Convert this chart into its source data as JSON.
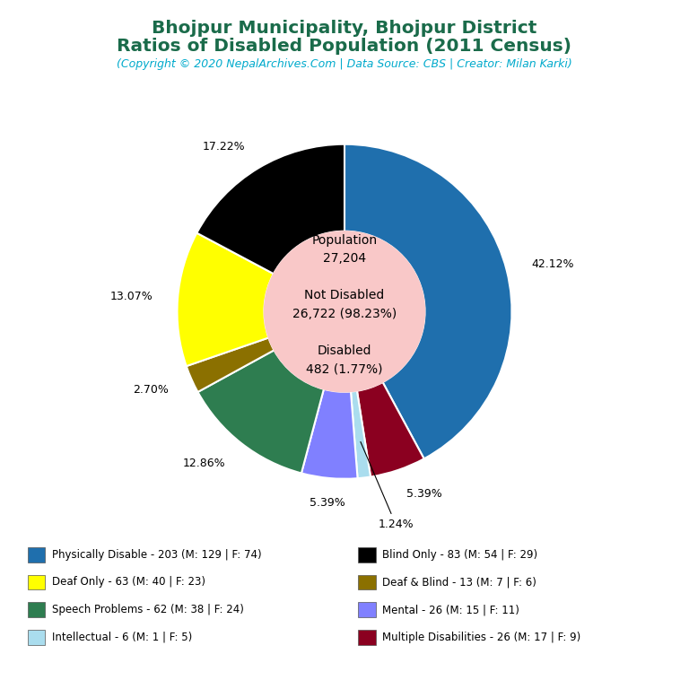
{
  "title_line1": "Bhojpur Municipality, Bhojpur District",
  "title_line2": "Ratios of Disabled Population (2011 Census)",
  "subtitle": "(Copyright © 2020 NepalArchives.Com | Data Source: CBS | Creator: Milan Karki)",
  "title_color": "#1a6b4a",
  "subtitle_color": "#00aacc",
  "population": 27204,
  "not_disabled": 26722,
  "not_disabled_pct": 98.23,
  "disabled": 482,
  "disabled_pct": 1.77,
  "slices": [
    {
      "label": "Physically Disable - 203 (M: 129 | F: 74)",
      "value": 203,
      "pct": "42.12%",
      "color": "#1f6fad"
    },
    {
      "label": "Multiple Disabilities - 26 (M: 17 | F: 9)",
      "value": 26,
      "pct": "5.39%",
      "color": "#8b0020"
    },
    {
      "label": "Intellectual - 6 (M: 1 | F: 5)",
      "value": 6,
      "pct": "1.24%",
      "color": "#aaddee"
    },
    {
      "label": "Mental - 26 (M: 15 | F: 11)",
      "value": 26,
      "pct": "5.39%",
      "color": "#8080ff"
    },
    {
      "label": "Speech Problems - 62 (M: 38 | F: 24)",
      "value": 62,
      "pct": "12.86%",
      "color": "#2e7d50"
    },
    {
      "label": "Deaf & Blind - 13 (M: 7 | F: 6)",
      "value": 13,
      "pct": "2.70%",
      "color": "#8b7000"
    },
    {
      "label": "Deaf Only - 63 (M: 40 | F: 23)",
      "value": 63,
      "pct": "13.07%",
      "color": "#ffff00"
    },
    {
      "label": "Blind Only - 83 (M: 54 | F: 29)",
      "value": 83,
      "pct": "17.22%",
      "color": "#000000"
    }
  ],
  "legend_order": [
    {
      "label": "Physically Disable - 203 (M: 129 | F: 74)",
      "color": "#1f6fad"
    },
    {
      "label": "Deaf Only - 63 (M: 40 | F: 23)",
      "color": "#ffff00"
    },
    {
      "label": "Speech Problems - 62 (M: 38 | F: 24)",
      "color": "#2e7d50"
    },
    {
      "label": "Intellectual - 6 (M: 1 | F: 5)",
      "color": "#aaddee"
    },
    {
      "label": "Blind Only - 83 (M: 54 | F: 29)",
      "color": "#000000"
    },
    {
      "label": "Deaf & Blind - 13 (M: 7 | F: 6)",
      "color": "#8b7000"
    },
    {
      "label": "Mental - 26 (M: 15 | F: 11)",
      "color": "#8080ff"
    },
    {
      "label": "Multiple Disabilities - 26 (M: 17 | F: 9)",
      "color": "#8b0020"
    }
  ],
  "center_circle_color": "#f9c8c8",
  "background_color": "#ffffff"
}
